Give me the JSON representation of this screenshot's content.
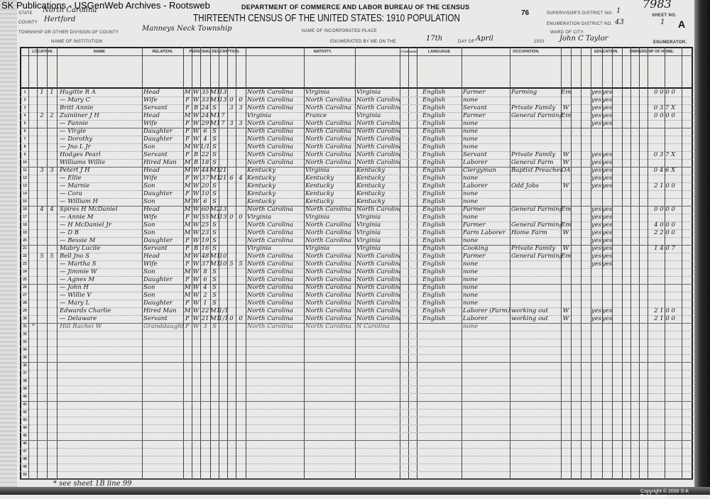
{
  "watermark": "SK Publications - USGenWeb Archives - Rootsweb",
  "header": {
    "state_label": "State",
    "state": "North Carolina",
    "county_label": "County",
    "county": "Hertford",
    "township_label": "Township or other division of county",
    "township": "Manneys Neck Township",
    "institution_label": "Name of institution",
    "department": "DEPARTMENT OF COMMERCE AND LABOR BUREAU OF THE CENSUS",
    "title": "THIRTEENTH CENSUS OF THE UNITED STATES: 1910 POPULATION",
    "page_number": "76",
    "incorporated_place_label": "Name of incorporated place",
    "enumerated_label": "Enumerated by me on the",
    "enumerated_day": "17th",
    "day_of_label": "day of",
    "enumerated_month": "April",
    "year_label": "1910",
    "enumerator": "John C Taylor",
    "enumerator_label": "ENUMERATOR.",
    "supervisor_label": "Supervisor's District No.",
    "supervisor_district": "1",
    "enumeration_label": "Enumeration District No.",
    "enumeration_district": "43",
    "ward_label": "Ward of city.",
    "sheet_label": "Sheet No.",
    "sheet_number": "1",
    "sheet_side": "A",
    "stamp_number": "7983"
  },
  "column_groups": {
    "location": "Location.",
    "name": "Name",
    "relation": "Relation.",
    "personal": "Personal description.",
    "nativity": "Nativity.",
    "citizenship": "Citizenship.",
    "language": "Language",
    "occupation": "Occupation.",
    "education": "Education.",
    "ownership": "Ownership of home."
  },
  "rows": [
    {
      "line": "1",
      "dwelling": "1",
      "family": "1",
      "name": "Hugitte R A",
      "relation": "Head",
      "sex": "M",
      "race": "W",
      "age": "35",
      "marital": "M1",
      "years_married": "13",
      "born": "",
      "living": "",
      "birthplace": "North Carolina",
      "father_birthplace": "Virginia",
      "mother_birthplace": "Virginia",
      "language": "English",
      "occupation": "Farmer",
      "industry": "Farming",
      "employer": "Emp",
      "read": "yes",
      "write": "yes",
      "codes": "0 0 0 0"
    },
    {
      "line": "2",
      "name": "— Mary C",
      "relation": "Wife",
      "sex": "F",
      "race": "W",
      "age": "33",
      "marital": "M1",
      "years_married": "13",
      "born": "0",
      "living": "0",
      "birthplace": "North Carolina",
      "father_birthplace": "North Carolina",
      "mother_birthplace": "North Carolina",
      "language": "English",
      "occupation": "none",
      "read": "yes",
      "write": "yes"
    },
    {
      "line": "3",
      "name": "Britt Annie",
      "relation": "Servant",
      "sex": "F",
      "race": "B",
      "age": "24",
      "marital": "S",
      "born": "3",
      "living": "3",
      "birthplace": "North Carolina",
      "father_birthplace": "North Carolina",
      "mother_birthplace": "North Carolina",
      "language": "English",
      "occupation": "Servant",
      "industry": "Private Family",
      "employer": "W",
      "read": "yes",
      "write": "yes",
      "codes": "0 3 7 X"
    },
    {
      "line": "4",
      "dwelling": "2",
      "family": "2",
      "name": "Zuiniiner J H",
      "relation": "Head",
      "sex": "M",
      "race": "W",
      "age": "24",
      "marital": "M1",
      "years_married": "7",
      "birthplace": "Virginia",
      "father_birthplace": "France",
      "mother_birthplace": "Virginia",
      "language": "English",
      "occupation": "Farmer",
      "industry": "General Farming",
      "employer": "Emp",
      "read": "yes",
      "write": "yes",
      "codes": "0 0 0 0"
    },
    {
      "line": "5",
      "name": "— Fannie",
      "relation": "Wife",
      "sex": "F",
      "race": "W",
      "age": "29",
      "marital": "M1",
      "years_married": "7",
      "born": "3",
      "living": "3",
      "birthplace": "North Carolina",
      "father_birthplace": "North Carolina",
      "mother_birthplace": "North Carolina",
      "language": "English",
      "occupation": "none",
      "read": "yes",
      "write": "yes"
    },
    {
      "line": "6",
      "name": "— Virgie",
      "relation": "Daughter",
      "sex": "F",
      "race": "W",
      "age": "6",
      "marital": "S",
      "birthplace": "North Carolina",
      "father_birthplace": "North Carolina",
      "mother_birthplace": "North Carolina",
      "language": "English",
      "occupation": "none"
    },
    {
      "line": "7",
      "name": "— Dorothy",
      "relation": "Daughter",
      "sex": "F",
      "race": "W",
      "age": "4",
      "marital": "S",
      "birthplace": "North Carolina",
      "father_birthplace": "North Carolina",
      "mother_birthplace": "North Carolina",
      "language": "English",
      "occupation": "none"
    },
    {
      "line": "8",
      "name": "— Jno L Jr",
      "relation": "Son",
      "sex": "M",
      "race": "W",
      "age": "1/12",
      "marital": "S",
      "birthplace": "North Carolina",
      "father_birthplace": "North Carolina",
      "mother_birthplace": "North Carolina",
      "language": "English",
      "occupation": "none"
    },
    {
      "line": "9",
      "name": "Hodges Pearl",
      "relation": "Servant",
      "sex": "F",
      "race": "B",
      "age": "22",
      "marital": "S",
      "birthplace": "North Carolina",
      "father_birthplace": "North Carolina",
      "mother_birthplace": "North Carolina",
      "language": "English",
      "occupation": "Servant",
      "industry": "Private Family",
      "employer": "W",
      "read": "yes",
      "write": "yes",
      "codes": "0 3 7 X"
    },
    {
      "line": "10",
      "name": "Williams Willie",
      "relation": "Hired Man",
      "sex": "M",
      "race": "B",
      "age": "18",
      "marital": "S",
      "birthplace": "North Carolina",
      "father_birthplace": "North Carolina",
      "mother_birthplace": "North Carolina",
      "language": "English",
      "occupation": "Laborer",
      "industry": "General Farm",
      "employer": "W",
      "read": "yes",
      "write": "yes"
    },
    {
      "line": "11",
      "dwelling": "3",
      "family": "3",
      "name": "Petert J H",
      "relation": "Head",
      "sex": "M",
      "race": "W",
      "age": "44",
      "marital": "M1",
      "years_married": "21",
      "birthplace": "Kentucky",
      "father_birthplace": "Virginia",
      "mother_birthplace": "Kentucky",
      "language": "English",
      "occupation": "Clergyman",
      "industry": "Baptist Preacher",
      "employer": "OA",
      "read": "yes",
      "write": "yes",
      "codes": "0 4 6 X"
    },
    {
      "line": "12",
      "name": "— Ellie",
      "relation": "Wife",
      "sex": "F",
      "race": "W",
      "age": "37",
      "marital": "M1",
      "years_married": "21",
      "born": "6",
      "living": "4",
      "birthplace": "Kentucky",
      "father_birthplace": "Kentucky",
      "mother_birthplace": "Kentucky",
      "language": "English",
      "occupation": "none",
      "read": "yes",
      "write": "yes"
    },
    {
      "line": "13",
      "name": "— Marnie",
      "relation": "Son",
      "sex": "M",
      "race": "W",
      "age": "20",
      "marital": "S",
      "birthplace": "Kentucky",
      "father_birthplace": "Kentucky",
      "mother_birthplace": "Kentucky",
      "language": "English",
      "occupation": "Laborer",
      "industry": "Odd Jobs",
      "employer": "W",
      "read": "yes",
      "write": "yes",
      "codes": "2 1 0 0"
    },
    {
      "line": "14",
      "name": "— Cora",
      "relation": "Daughter",
      "sex": "F",
      "race": "W",
      "age": "10",
      "marital": "S",
      "birthplace": "Kentucky",
      "father_birthplace": "Kentucky",
      "mother_birthplace": "Kentucky",
      "language": "English",
      "occupation": "none"
    },
    {
      "line": "15",
      "name": "— William H",
      "relation": "Son",
      "sex": "M",
      "race": "W",
      "age": "6",
      "marital": "S",
      "birthplace": "Kentucky",
      "father_birthplace": "Kentucky",
      "mother_birthplace": "Kentucky",
      "language": "English",
      "occupation": "none"
    },
    {
      "line": "16",
      "dwelling": "4",
      "family": "4",
      "name": "Spires H McDaniel",
      "relation": "Head",
      "sex": "M",
      "race": "W",
      "age": "60",
      "marital": "M2",
      "years_married": "13",
      "birthplace": "North Carolina",
      "father_birthplace": "North Carolina",
      "mother_birthplace": "North Carolina",
      "language": "English",
      "occupation": "Farmer",
      "industry": "General Farming",
      "employer": "Emp",
      "read": "yes",
      "write": "yes",
      "codes": "0 0 0 0"
    },
    {
      "line": "17",
      "name": "— Annie M",
      "relation": "Wife",
      "sex": "F",
      "race": "W",
      "age": "55",
      "marital": "M1",
      "years_married": "13",
      "born": "0",
      "living": "0",
      "birthplace": "Virginia",
      "father_birthplace": "Virginia",
      "mother_birthplace": "Virginia",
      "language": "English",
      "occupation": "none",
      "read": "yes",
      "write": "yes"
    },
    {
      "line": "18",
      "name": "— H McDaniel Jr",
      "relation": "Son",
      "sex": "M",
      "race": "W",
      "age": "25",
      "marital": "S",
      "birthplace": "North Carolina",
      "father_birthplace": "North Carolina",
      "mother_birthplace": "Virginia",
      "language": "English",
      "occupation": "Farmer",
      "industry": "General Farming",
      "employer": "Emp",
      "read": "yes",
      "write": "yes",
      "codes": "4 0 0 0"
    },
    {
      "line": "19",
      "name": "— D B",
      "relation": "Son",
      "sex": "M",
      "race": "W",
      "age": "23",
      "marital": "S",
      "birthplace": "North Carolina",
      "father_birthplace": "North Carolina",
      "mother_birthplace": "Virginia",
      "language": "English",
      "occupation": "Farm Laborer",
      "industry": "Home Farm",
      "employer": "W",
      "read": "yes",
      "write": "yes",
      "codes": "2 2 0 0"
    },
    {
      "line": "20",
      "name": "— Bessie M",
      "relation": "Daughter",
      "sex": "F",
      "race": "W",
      "age": "19",
      "marital": "S",
      "birthplace": "North Carolina",
      "father_birthplace": "North Carolina",
      "mother_birthplace": "Virginia",
      "language": "English",
      "occupation": "none",
      "read": "yes",
      "write": "yes"
    },
    {
      "line": "21",
      "name": "Mabry Lucile",
      "relation": "Servant",
      "sex": "F",
      "race": "B",
      "age": "16",
      "marital": "S",
      "birthplace": "Virginia",
      "father_birthplace": "Virginia",
      "mother_birthplace": "Virginia",
      "language": "English",
      "occupation": "Cooking",
      "industry": "Private Family",
      "employer": "W",
      "read": "yes",
      "write": "yes",
      "codes": "1 4 0 7"
    },
    {
      "line": "22",
      "dwelling": "5",
      "family": "5",
      "name": "Bell Jno S",
      "relation": "Head",
      "sex": "M",
      "race": "W",
      "age": "48",
      "marital": "M1",
      "years_married": "10",
      "birthplace": "North Carolina",
      "father_birthplace": "North Carolina",
      "mother_birthplace": "North Carolina",
      "language": "English",
      "occupation": "Farmer",
      "industry": "General Farming",
      "employer": "Emp",
      "read": "yes",
      "write": "yes"
    },
    {
      "line": "23",
      "name": "— Martha S",
      "relation": "Wife",
      "sex": "F",
      "race": "W",
      "age": "37",
      "marital": "M1",
      "years_married": "10",
      "born": "5",
      "living": "5",
      "birthplace": "North Carolina",
      "father_birthplace": "North Carolina",
      "mother_birthplace": "North Carolina",
      "language": "English",
      "occupation": "none",
      "read": "yes",
      "write": "yes"
    },
    {
      "line": "24",
      "name": "— Jimmie W",
      "relation": "Son",
      "sex": "M",
      "race": "W",
      "age": "8",
      "marital": "S",
      "birthplace": "North Carolina",
      "father_birthplace": "North Carolina",
      "mother_birthplace": "North Carolina",
      "language": "English",
      "occupation": "none"
    },
    {
      "line": "25",
      "name": "— Agnes M",
      "relation": "Daughter",
      "sex": "F",
      "race": "W",
      "age": "6",
      "marital": "S",
      "birthplace": "North Carolina",
      "father_birthplace": "North Carolina",
      "mother_birthplace": "North Carolina",
      "language": "English",
      "occupation": "none"
    },
    {
      "line": "26",
      "name": "— John H",
      "relation": "Son",
      "sex": "M",
      "race": "W",
      "age": "4",
      "marital": "S",
      "birthplace": "North Carolina",
      "father_birthplace": "North Carolina",
      "mother_birthplace": "North Carolina",
      "language": "English",
      "occupation": "none"
    },
    {
      "line": "27",
      "name": "— Willie V",
      "relation": "Son",
      "sex": "M",
      "race": "W",
      "age": "2",
      "marital": "S",
      "birthplace": "North Carolina",
      "father_birthplace": "North Carolina",
      "mother_birthplace": "North Carolina",
      "language": "English",
      "occupation": "none"
    },
    {
      "line": "28",
      "name": "— Mary L",
      "relation": "Daughter",
      "sex": "F",
      "race": "W",
      "age": "1",
      "marital": "S",
      "birthplace": "North Carolina",
      "father_birthplace": "North Carolina",
      "mother_birthplace": "North Carolina",
      "language": "English",
      "occupation": "none"
    },
    {
      "line": "29",
      "name": "Edwards Charlie",
      "relation": "Hired Man",
      "sex": "M",
      "race": "W",
      "age": "22",
      "marital": "M1",
      "years_married": "1/12",
      "birthplace": "North Carolina",
      "father_birthplace": "North Carolina",
      "mother_birthplace": "North Carolina",
      "language": "English",
      "occupation": "Laborer (Farm)",
      "industry": "working out",
      "employer": "W",
      "read": "yes",
      "write": "yes",
      "codes": "2 1 0 0"
    },
    {
      "line": "30",
      "name": "— Delaware",
      "relation": "Servant",
      "sex": "F",
      "race": "W",
      "age": "21",
      "marital": "M1",
      "years_married": "1/12",
      "born": "0",
      "living": "0",
      "birthplace": "North Carolina",
      "father_birthplace": "North Carolina",
      "mother_birthplace": "North Carolina",
      "language": "English",
      "occupation": "Laborer",
      "industry": "working out",
      "employer": "W",
      "read": "yes",
      "write": "yes",
      "codes": "2 1 0 0"
    },
    {
      "line": "31",
      "marker": "*",
      "name": "Hill Rachel W",
      "relation": "Granddaughter",
      "sex": "F",
      "race": "W",
      "age": "3",
      "marital": "S",
      "birthplace": "North Carolina",
      "father_birthplace": "North Carolina",
      "mother_birthplace": "N Carolina",
      "occupation": "none",
      "pencil": true
    }
  ],
  "total_lines": 50,
  "footer": {
    "note": "* see sheet 1B line 99",
    "copyright": "Copyright © 2000 S-K Publications"
  }
}
